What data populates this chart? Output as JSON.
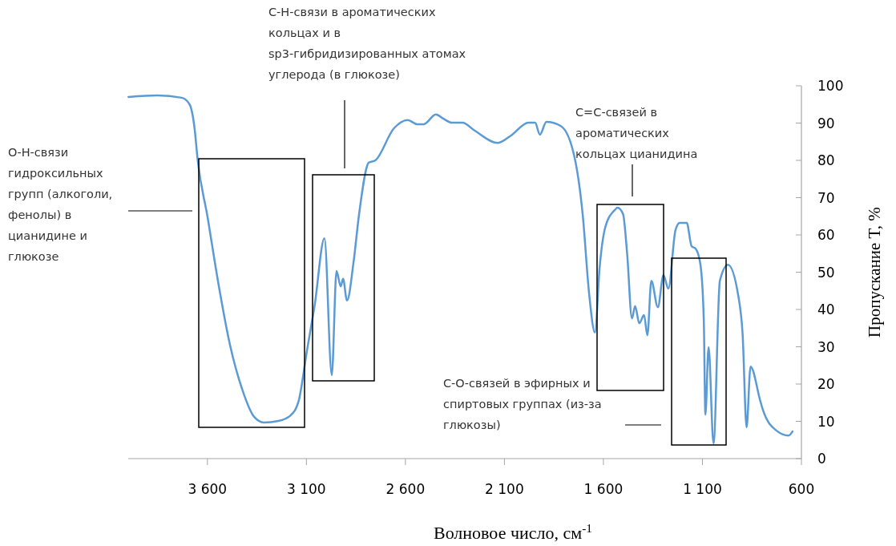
{
  "chart_data": {
    "type": "line",
    "xlabel": "Волновое число, см$^{-1}$",
    "ylabel": "Пропускание T, %",
    "x": [
      3999,
      3853,
      3730,
      3690,
      3665,
      3649,
      3600,
      3547,
      3486,
      3425,
      3364,
      3315,
      3241,
      3180,
      3139,
      3099,
      3058,
      3009,
      2972,
      2948,
      2927,
      2915,
      2895,
      2862,
      2834,
      2785,
      2752,
      2658,
      2589,
      2540,
      2508,
      2446,
      2409,
      2365,
      2312,
      2251,
      2133,
      2071,
      1978,
      1945,
      1921,
      1888,
      1815,
      1745,
      1705,
      1672,
      1643,
      1619,
      1590,
      1542,
      1529,
      1501,
      1480,
      1456,
      1440,
      1419,
      1395,
      1378,
      1358,
      1325,
      1297,
      1272,
      1236,
      1215,
      1179,
      1155,
      1134,
      1110,
      1093,
      1085,
      1069,
      1044,
      1012,
      971,
      918,
      897,
      877,
      857,
      808,
      796,
      726,
      665,
      645
    ],
    "series": [
      {
        "color": "#5b9bd5",
        "values": [
          97,
          97.4,
          96.8,
          95,
          88.6,
          80,
          65,
          47.7,
          30.5,
          18.7,
          11.2,
          9.7,
          10.1,
          11.6,
          15.5,
          28.4,
          41.3,
          59.1,
          22.4,
          50.3,
          46.2,
          48.2,
          42.4,
          52.7,
          65.6,
          79.4,
          80,
          88.6,
          90.8,
          89.7,
          89.7,
          92.3,
          91.2,
          90.1,
          90.1,
          88,
          84.7,
          86.5,
          90.1,
          90.1,
          86.9,
          90.3,
          89.2,
          80.6,
          65.6,
          44.1,
          33.8,
          51.4,
          62.2,
          66.7,
          67.3,
          65.6,
          54.8,
          37.6,
          40.9,
          36.3,
          38.5,
          33.1,
          47.7,
          40.6,
          49.2,
          45.6,
          61.3,
          63.2,
          63.2,
          57,
          56.3,
          52,
          37,
          11.8,
          29.9,
          4.1,
          47.7,
          52,
          43.4,
          33.3,
          8.4,
          24.7,
          15.5,
          13.3,
          7.5,
          6.2,
          7.3
        ]
      }
    ],
    "xlim": [
      4000,
      600
    ],
    "xticks": [
      {
        "value": 3600,
        "label": "3 600"
      },
      {
        "value": 3100,
        "label": "3 100"
      },
      {
        "value": 2600,
        "label": "2 600"
      },
      {
        "value": 2100,
        "label": "2 100"
      },
      {
        "value": 1600,
        "label": "1 600"
      },
      {
        "value": 1100,
        "label": "1 100"
      },
      {
        "value": 600,
        "label": "600"
      }
    ],
    "ylim": [
      0,
      100
    ],
    "yticks": [
      0,
      10,
      20,
      30,
      40,
      50,
      60,
      70,
      80,
      90,
      100
    ],
    "grid": false,
    "annotations": [
      "О-Н-связи гидроксильных групп (алкоголи, фенолы) в цианидине и глюкозе",
      "С-Н-связи в ароматических кольцах и в sp3-гибридизированных атомах углерода (в глюкозе)",
      "С=С-связей в ароматических кольцах цианидина",
      "С-О-связей в эфирных и спиртовых группах (из-за глюкозы)"
    ]
  }
}
